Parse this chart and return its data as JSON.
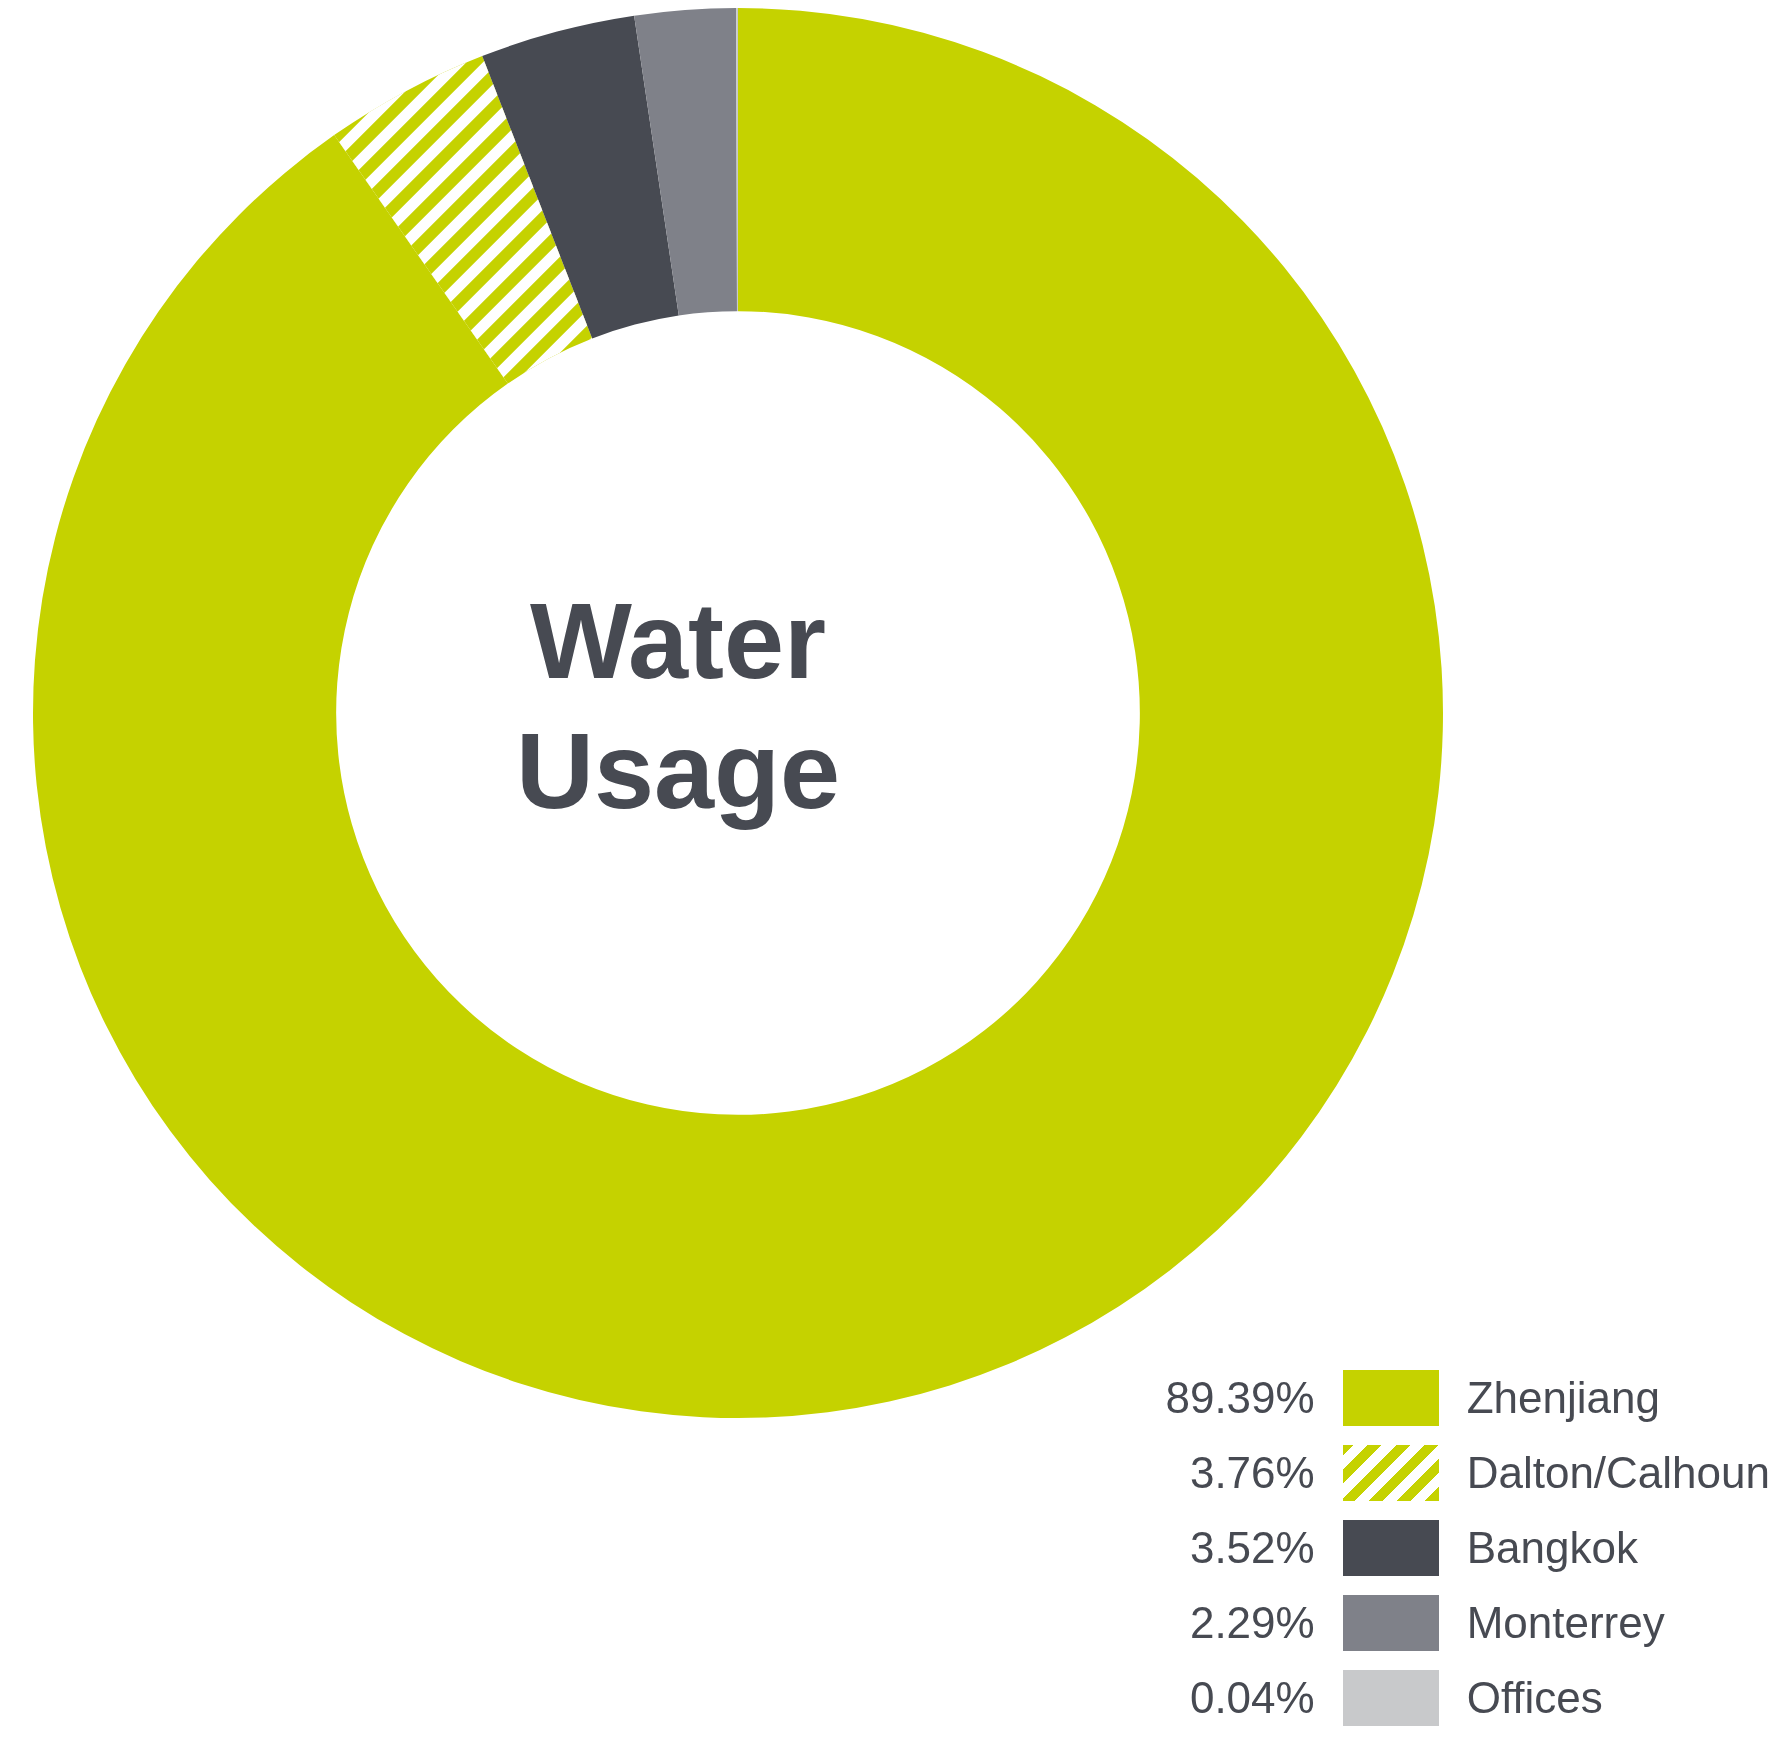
{
  "chart_data": {
    "type": "donut",
    "title": "Water Usage",
    "categories": [
      "Zhenjiang",
      "Dalton/Calhoun",
      "Bangkok",
      "Monterrey",
      "Offices"
    ],
    "values": [
      89.39,
      3.76,
      3.52,
      2.29,
      0.04
    ],
    "colors": [
      "#c5d200",
      "#c5d200",
      "#474a52",
      "#7f8189",
      "#c8c9cb"
    ],
    "value_labels": [
      "89.39%",
      "3.76%",
      "3.52%",
      "2.29%",
      "0.04%"
    ],
    "legend": "bottom right"
  }
}
